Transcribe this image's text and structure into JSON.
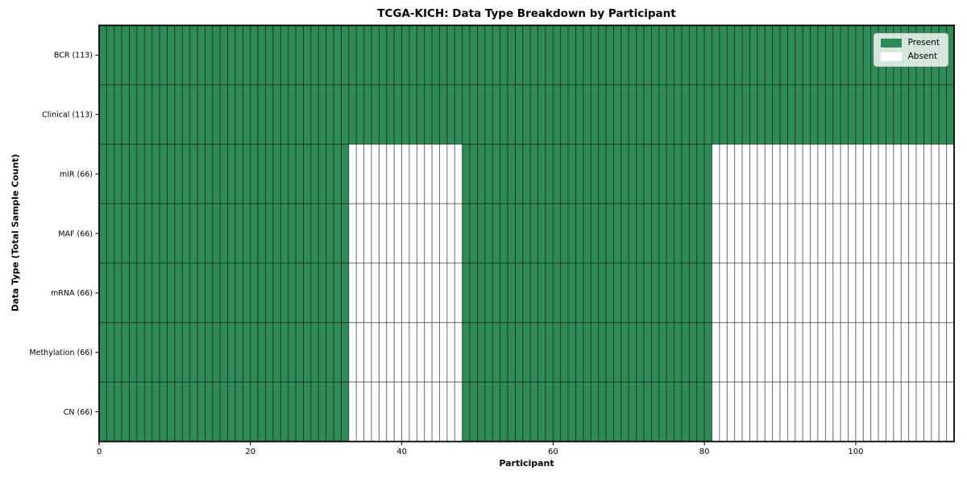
{
  "chart_data": {
    "type": "heatmap",
    "title": "TCGA-KICH: Data Type Breakdown by Participant",
    "xlabel": "Participant",
    "ylabel": "Data Type (Total Sample Count)",
    "xlim": [
      0,
      113
    ],
    "n_participants": 113,
    "x_ticks": [
      0,
      20,
      40,
      60,
      80,
      100
    ],
    "rows": [
      {
        "label": "BCR (113)",
        "total": 113,
        "present_ranges": [
          [
            0,
            113
          ]
        ]
      },
      {
        "label": "Clinical (113)",
        "total": 113,
        "present_ranges": [
          [
            0,
            113
          ]
        ]
      },
      {
        "label": "miR (66)",
        "total": 66,
        "present_ranges": [
          [
            0,
            33
          ],
          [
            48,
            81
          ]
        ]
      },
      {
        "label": "MAF (66)",
        "total": 66,
        "present_ranges": [
          [
            0,
            33
          ],
          [
            48,
            81
          ]
        ]
      },
      {
        "label": "mRNA (66)",
        "total": 66,
        "present_ranges": [
          [
            0,
            33
          ],
          [
            48,
            81
          ]
        ]
      },
      {
        "label": "Methylation (66)",
        "total": 66,
        "present_ranges": [
          [
            0,
            33
          ],
          [
            48,
            81
          ]
        ]
      },
      {
        "label": "CN (66)",
        "total": 66,
        "present_ranges": [
          [
            0,
            33
          ],
          [
            48,
            81
          ]
        ]
      }
    ],
    "legend": {
      "position": "upper right",
      "entries": [
        {
          "label": "Present",
          "color": "#2e8b57"
        },
        {
          "label": "Absent",
          "color": "#ffffff"
        }
      ]
    },
    "colors": {
      "present": "#2e8b57",
      "absent": "#ffffff",
      "cell_edge": "rgba(0,0,0,0.5)",
      "spine": "#000000"
    },
    "grid": false
  }
}
